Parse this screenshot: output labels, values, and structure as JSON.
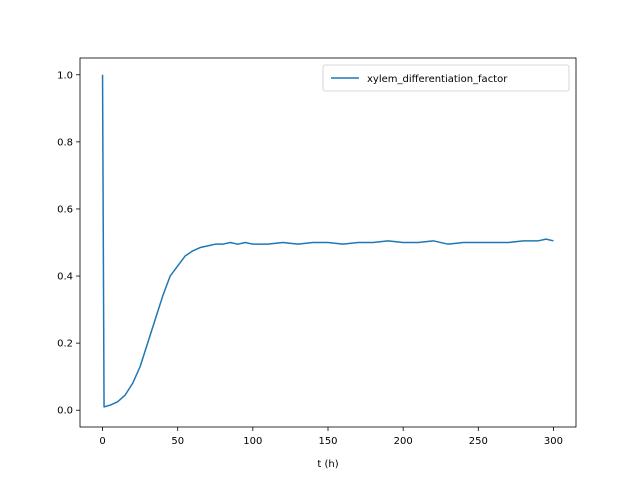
{
  "chart_data": {
    "type": "line",
    "title": "",
    "xlabel": "t (h)",
    "ylabel": "",
    "xlim": [
      -15,
      315
    ],
    "ylim": [
      -0.05,
      1.05
    ],
    "xticks": [
      0,
      50,
      100,
      150,
      200,
      250,
      300
    ],
    "yticks": [
      0.0,
      0.2,
      0.4,
      0.6,
      0.8,
      1.0
    ],
    "xtick_labels": [
      "0",
      "50",
      "100",
      "150",
      "200",
      "250",
      "300"
    ],
    "ytick_labels": [
      "0.0",
      "0.2",
      "0.4",
      "0.6",
      "0.8",
      "1.0"
    ],
    "grid": false,
    "legend_position": "top-right",
    "series": [
      {
        "name": "xylem_differentiation_factor",
        "color": "#1f77b4",
        "x": [
          0,
          1,
          5,
          10,
          15,
          20,
          25,
          30,
          35,
          40,
          45,
          50,
          55,
          60,
          65,
          70,
          75,
          80,
          85,
          90,
          95,
          100,
          110,
          120,
          130,
          140,
          150,
          160,
          170,
          180,
          190,
          200,
          210,
          220,
          230,
          240,
          250,
          260,
          270,
          280,
          290,
          295,
          300
        ],
        "y": [
          1.0,
          0.01,
          0.015,
          0.025,
          0.045,
          0.08,
          0.13,
          0.2,
          0.27,
          0.34,
          0.4,
          0.43,
          0.46,
          0.475,
          0.485,
          0.49,
          0.495,
          0.495,
          0.5,
          0.495,
          0.5,
          0.495,
          0.495,
          0.5,
          0.495,
          0.5,
          0.5,
          0.495,
          0.5,
          0.5,
          0.505,
          0.5,
          0.5,
          0.505,
          0.495,
          0.5,
          0.5,
          0.5,
          0.5,
          0.505,
          0.505,
          0.51,
          0.505
        ]
      }
    ]
  }
}
